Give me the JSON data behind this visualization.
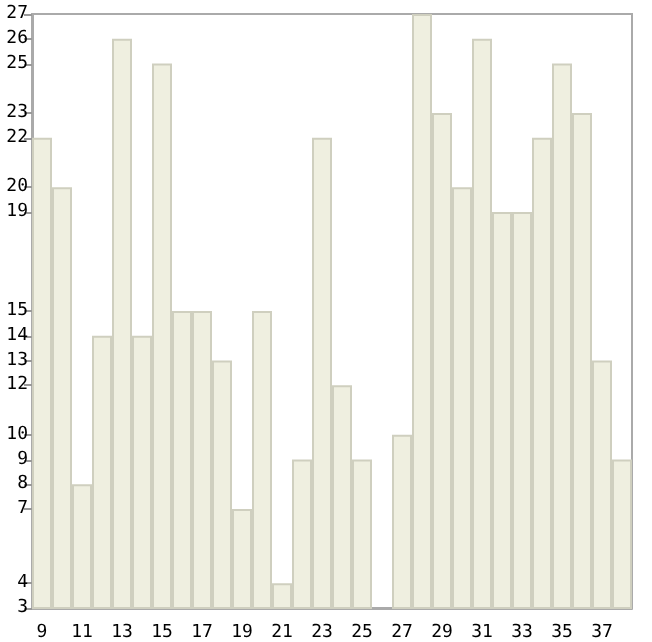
{
  "chart_data": {
    "type": "bar",
    "categories": [
      "9",
      null,
      "11",
      null,
      "13",
      null,
      "15",
      null,
      "17",
      null,
      "19",
      null,
      "21",
      null,
      "23",
      null,
      "25",
      null,
      "27",
      null,
      "29",
      null,
      "31",
      null,
      "33",
      null,
      "35",
      null,
      "37",
      null
    ],
    "values": [
      22,
      20,
      8,
      14,
      26,
      14,
      25,
      15,
      15,
      13,
      7,
      15,
      4,
      9,
      22,
      12,
      9,
      3,
      10,
      27,
      23,
      20,
      26,
      19,
      19,
      22,
      25,
      23,
      13,
      9
    ],
    "color": "#efefe0",
    "ylim": [
      3,
      27
    ],
    "yticks": [
      3,
      4,
      7,
      8,
      9,
      10,
      12,
      13,
      14,
      15,
      19,
      20,
      22,
      23,
      25,
      26,
      27
    ],
    "grid": false
  }
}
